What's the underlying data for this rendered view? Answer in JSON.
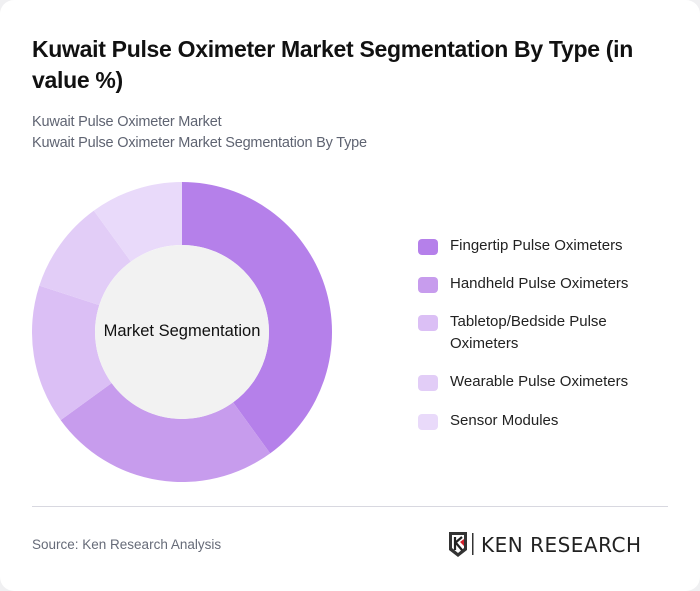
{
  "header": {
    "title": "Kuwait Pulse Oximeter Market Segmentation By Type (in value %)",
    "subtitle_1": "Kuwait Pulse Oximeter Market",
    "subtitle_2": "Kuwait Pulse Oximeter Market Segmentation By Type"
  },
  "chart": {
    "center_label": "Market Segmentation"
  },
  "legend": [
    {
      "label": "Fingertip Pulse Oximeters",
      "color": "#b580ea"
    },
    {
      "label": "Handheld Pulse Oximeters",
      "color": "#c79ced"
    },
    {
      "label": "Tabletop/Bedside Pulse Oximeters",
      "color": "#dbbff5"
    },
    {
      "label": "Wearable Pulse Oximeters",
      "color": "#e2cdf7"
    },
    {
      "label": "Sensor Modules",
      "color": "#e9dafa"
    }
  ],
  "footer": {
    "source": "Source: Ken Research Analysis",
    "logo_text": "KEN RESEARCH"
  },
  "chart_data": {
    "type": "pie",
    "subtype": "donut",
    "title": "Kuwait Pulse Oximeter Market Segmentation By Type (in value %)",
    "center_label": "Market Segmentation",
    "categories": [
      "Fingertip Pulse Oximeters",
      "Handheld Pulse Oximeters",
      "Tabletop/Bedside Pulse Oximeters",
      "Wearable Pulse Oximeters",
      "Sensor Modules"
    ],
    "values": [
      40,
      25,
      15,
      10,
      10
    ],
    "colors": [
      "#b580ea",
      "#c79ced",
      "#dbbff5",
      "#e2cdf7",
      "#e9dafa"
    ],
    "legend_position": "right",
    "unit": "%"
  }
}
